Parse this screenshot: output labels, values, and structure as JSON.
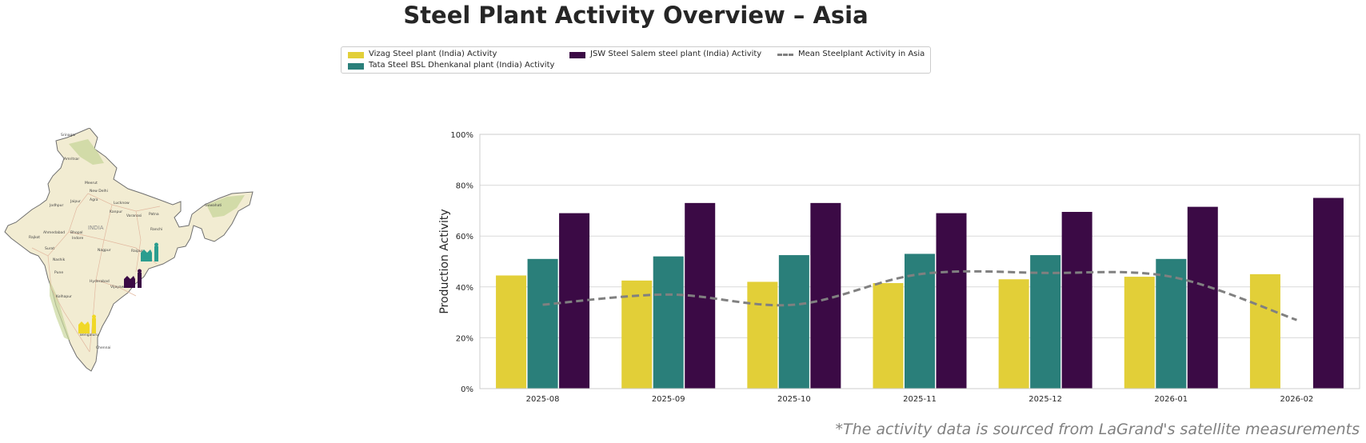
{
  "title": "Steel Plant Activity Overview – Asia",
  "footnote": "*The activity data is sourced from LaGrand's satellite measurements",
  "legend": [
    {
      "label": "Vizag Steel plant (India) Activity",
      "color": "#e2cf38",
      "kind": "bar"
    },
    {
      "label": "Tata Steel BSL Dhenkanal plant (India) Activity",
      "color": "#2a7f7a",
      "kind": "bar"
    },
    {
      "label": "JSW Steel Salem steel plant (India) Activity",
      "color": "#3b0a45",
      "kind": "bar"
    },
    {
      "label": "Mean Steelplant Activity in Asia",
      "color": "#808080",
      "kind": "dashed-line"
    }
  ],
  "map_labels": [
    "INDIA",
    "New Delhi",
    "Jaipur",
    "Agra",
    "Lucknow",
    "Kanpur",
    "Varanasi",
    "Patna",
    "Ahmedabad",
    "Indore",
    "Bhopal",
    "Nagpur",
    "Surat",
    "Nashik",
    "Pune",
    "Hyderabad",
    "Vijayawada",
    "Bengaluru",
    "Chennai",
    "Kolhapur",
    "Raipur",
    "Ranchi",
    "Meerut",
    "Jodhpur",
    "Rajkot",
    "Amritsar",
    "Srinagar",
    "Guwahati"
  ],
  "chart_data": {
    "type": "bar",
    "categories": [
      "2025-08",
      "2025-09",
      "2025-10",
      "2025-11",
      "2025-12",
      "2026-01",
      "2026-02"
    ],
    "series": [
      {
        "name": "Vizag Steel plant (India) Activity",
        "color": "#e2cf38",
        "values": [
          44.5,
          42.5,
          42,
          41.5,
          43,
          44,
          45
        ]
      },
      {
        "name": "Tata Steel BSL Dhenkanal plant (India) Activity",
        "color": "#2a7f7a",
        "values": [
          51,
          52,
          52.5,
          53,
          52.5,
          51,
          null
        ]
      },
      {
        "name": "JSW Steel Salem steel plant (India) Activity",
        "color": "#3b0a45",
        "values": [
          69,
          73,
          73,
          69,
          69.5,
          71.5,
          75
        ]
      }
    ],
    "line_series": {
      "name": "Mean Steelplant Activity in Asia",
      "color": "#808080",
      "values": [
        33,
        37,
        33,
        45,
        45.5,
        44,
        27
      ]
    },
    "title": "",
    "xlabel": "",
    "ylabel": "Production Activity",
    "ylim": [
      0,
      100
    ],
    "yticks": [
      0,
      20,
      40,
      60,
      80,
      100
    ],
    "ytick_labels": [
      "0%",
      "20%",
      "40%",
      "60%",
      "80%",
      "100%"
    ],
    "grid": true
  }
}
